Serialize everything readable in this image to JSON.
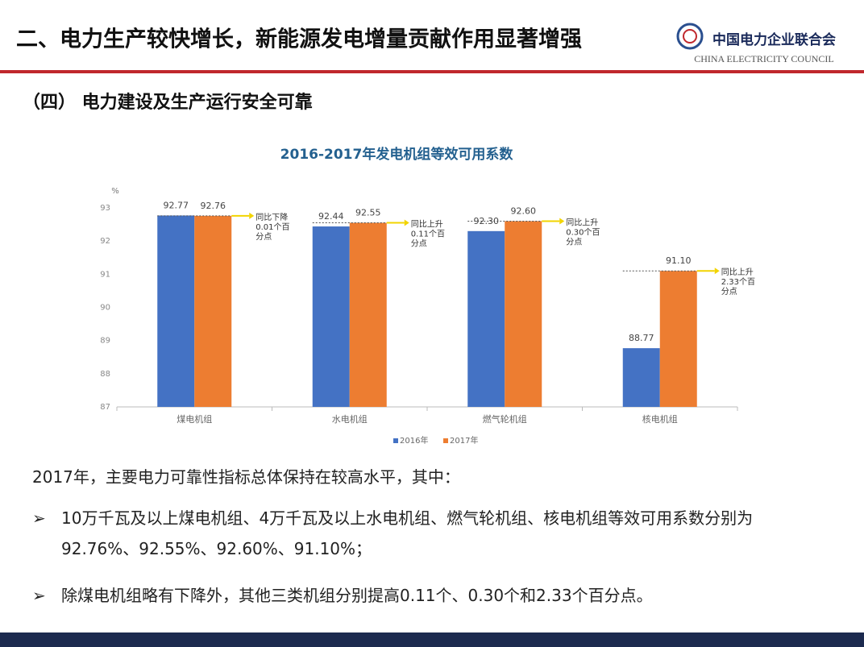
{
  "header": {
    "title": "二、电力生产较快增长，新能源发电增量贡献作用显著增强",
    "org_cn": "中国电力企业联合会",
    "org_en": "CHINA ELECTRICITY COUNCIL"
  },
  "section": "（四） 电力建设及生产运行安全可靠",
  "chart_data": {
    "type": "bar",
    "title": "2016-2017年发电机组等效可用系数",
    "y_unit": "%",
    "categories": [
      "煤电机组",
      "水电机组",
      "燃气轮机组",
      "核电机组"
    ],
    "series": [
      {
        "name": "2016年",
        "color": "#4472c4",
        "values": [
          92.77,
          92.44,
          92.3,
          88.77
        ],
        "value_labels": [
          "92.77",
          "92.44",
          "92.30",
          "88.77"
        ]
      },
      {
        "name": "2017年",
        "color": "#ed7d31",
        "values": [
          92.76,
          92.55,
          92.6,
          91.1
        ],
        "value_labels": [
          "92.76",
          "92.55",
          "92.60",
          "91.10"
        ]
      }
    ],
    "annotations": [
      [
        "同比下降",
        "0.01个百",
        "分点"
      ],
      [
        "同比上升",
        "0.11个百",
        "分点"
      ],
      [
        "同比上升",
        "0.30个百",
        "分点"
      ],
      [
        "同比上升",
        "2.33个百",
        "分点"
      ]
    ],
    "ylim": [
      87,
      93
    ],
    "yticks": [
      87,
      88,
      89,
      90,
      91,
      92,
      93
    ],
    "grid": false,
    "legend": "bottom"
  },
  "body": {
    "intro": "2017年，主要电力可靠性指标总体保持在较高水平，其中：",
    "bullets": [
      "10万千瓦及以上煤电机组、4万千瓦及以上水电机组、燃气轮机组、核电机组等效可用系数分别为92.76%、92.55%、92.60%、91.10%；",
      "除煤电机组略有下降外，其他三类机组分别提高0.11个、0.30个和2.33个百分点。"
    ]
  }
}
